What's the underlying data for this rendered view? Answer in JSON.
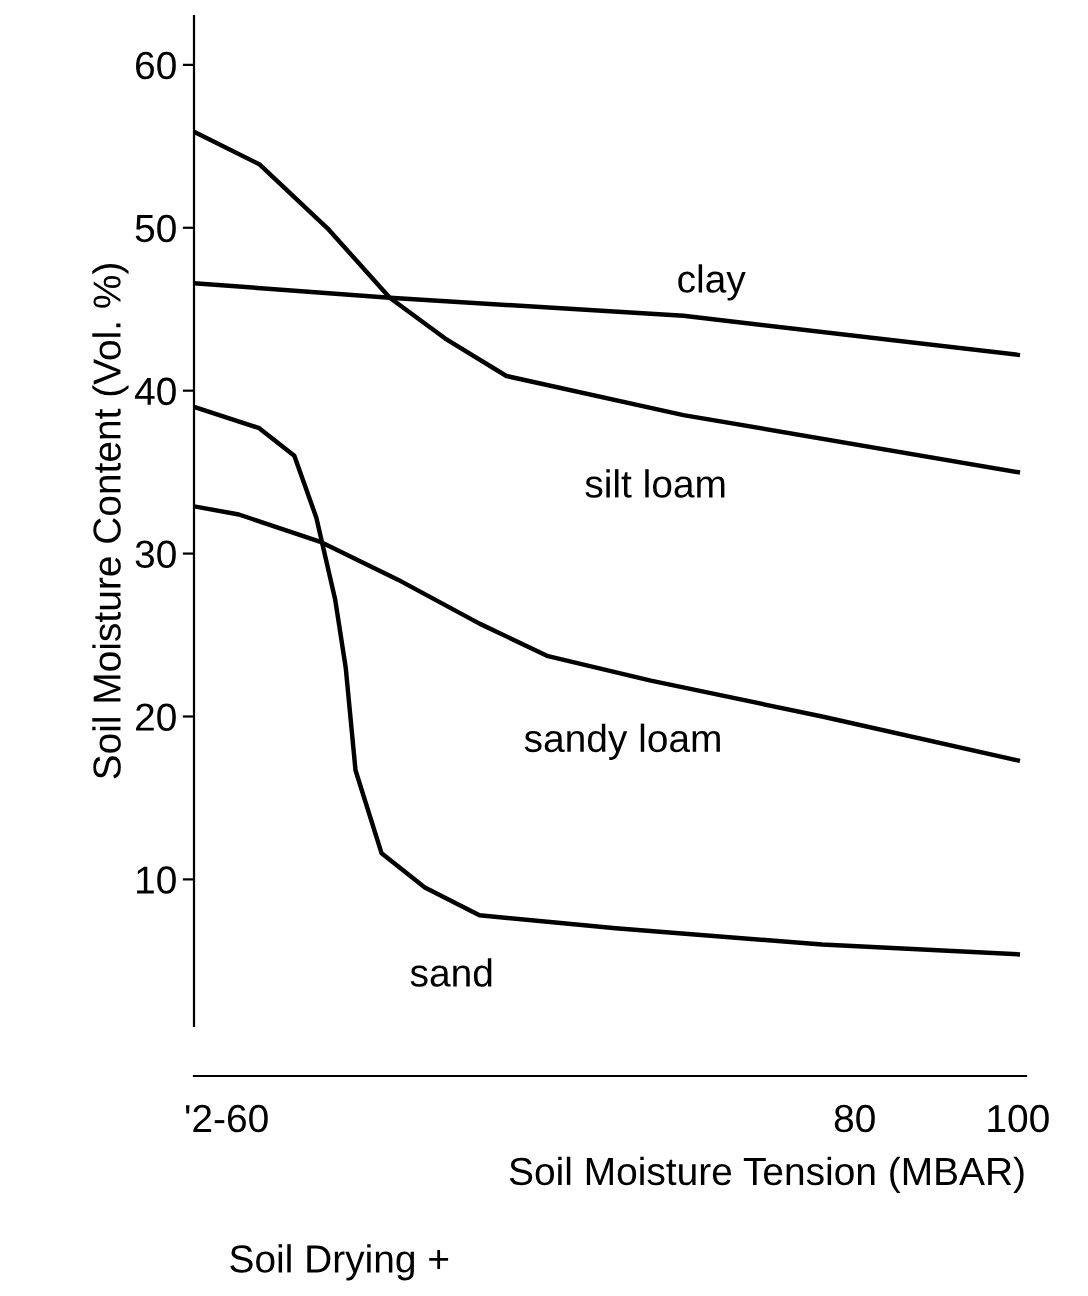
{
  "chart_data": {
    "type": "line",
    "xlabel": "Soil Moisture Tension (MBAR)",
    "ylabel": "Soil Moisture Content (Vol. %)",
    "series": [
      {
        "name": "clay",
        "color": "#000000",
        "x": [
          -1,
          23,
          59,
          100
        ],
        "values": [
          46.6,
          45.7,
          44.6,
          42.2
        ]
      },
      {
        "name": "silt loam",
        "color": "#000000",
        "x": [
          -1,
          7,
          15.5,
          23,
          29.8,
          37.3,
          59,
          100
        ],
        "values": [
          55.9,
          53.9,
          49.9,
          45.7,
          43.2,
          40.9,
          38.5,
          35
        ]
      },
      {
        "name": "sandy loam",
        "color": "#000000",
        "x": [
          -1,
          4.5,
          14.6,
          24,
          34,
          42.4,
          55,
          76,
          100
        ],
        "values": [
          32.9,
          32.4,
          30.7,
          28.4,
          25.7,
          23.7,
          22.2,
          20,
          17.3
        ]
      },
      {
        "name": "sand",
        "color": "#000000",
        "x": [
          -1,
          7,
          11.3,
          14,
          16.3,
          17.6,
          18.8,
          22,
          27.3,
          34,
          50.7,
          76,
          100
        ],
        "values": [
          39,
          37.7,
          36,
          32.2,
          27.2,
          23,
          16.7,
          11.6,
          9.5,
          7.8,
          7,
          6,
          5.4
        ]
      }
    ],
    "annotations": [
      "Soil Drying +"
    ],
    "xlim": [
      -1,
      101
    ],
    "ylim": [
      1,
      63
    ],
    "xticks": [
      {
        "value": 3,
        "label": "'2-60"
      },
      80,
      100
    ],
    "yticks": [
      10,
      20,
      30,
      40,
      50,
      60
    ],
    "grid": false,
    "legend": false,
    "marker": "none",
    "line_style": "solid"
  }
}
